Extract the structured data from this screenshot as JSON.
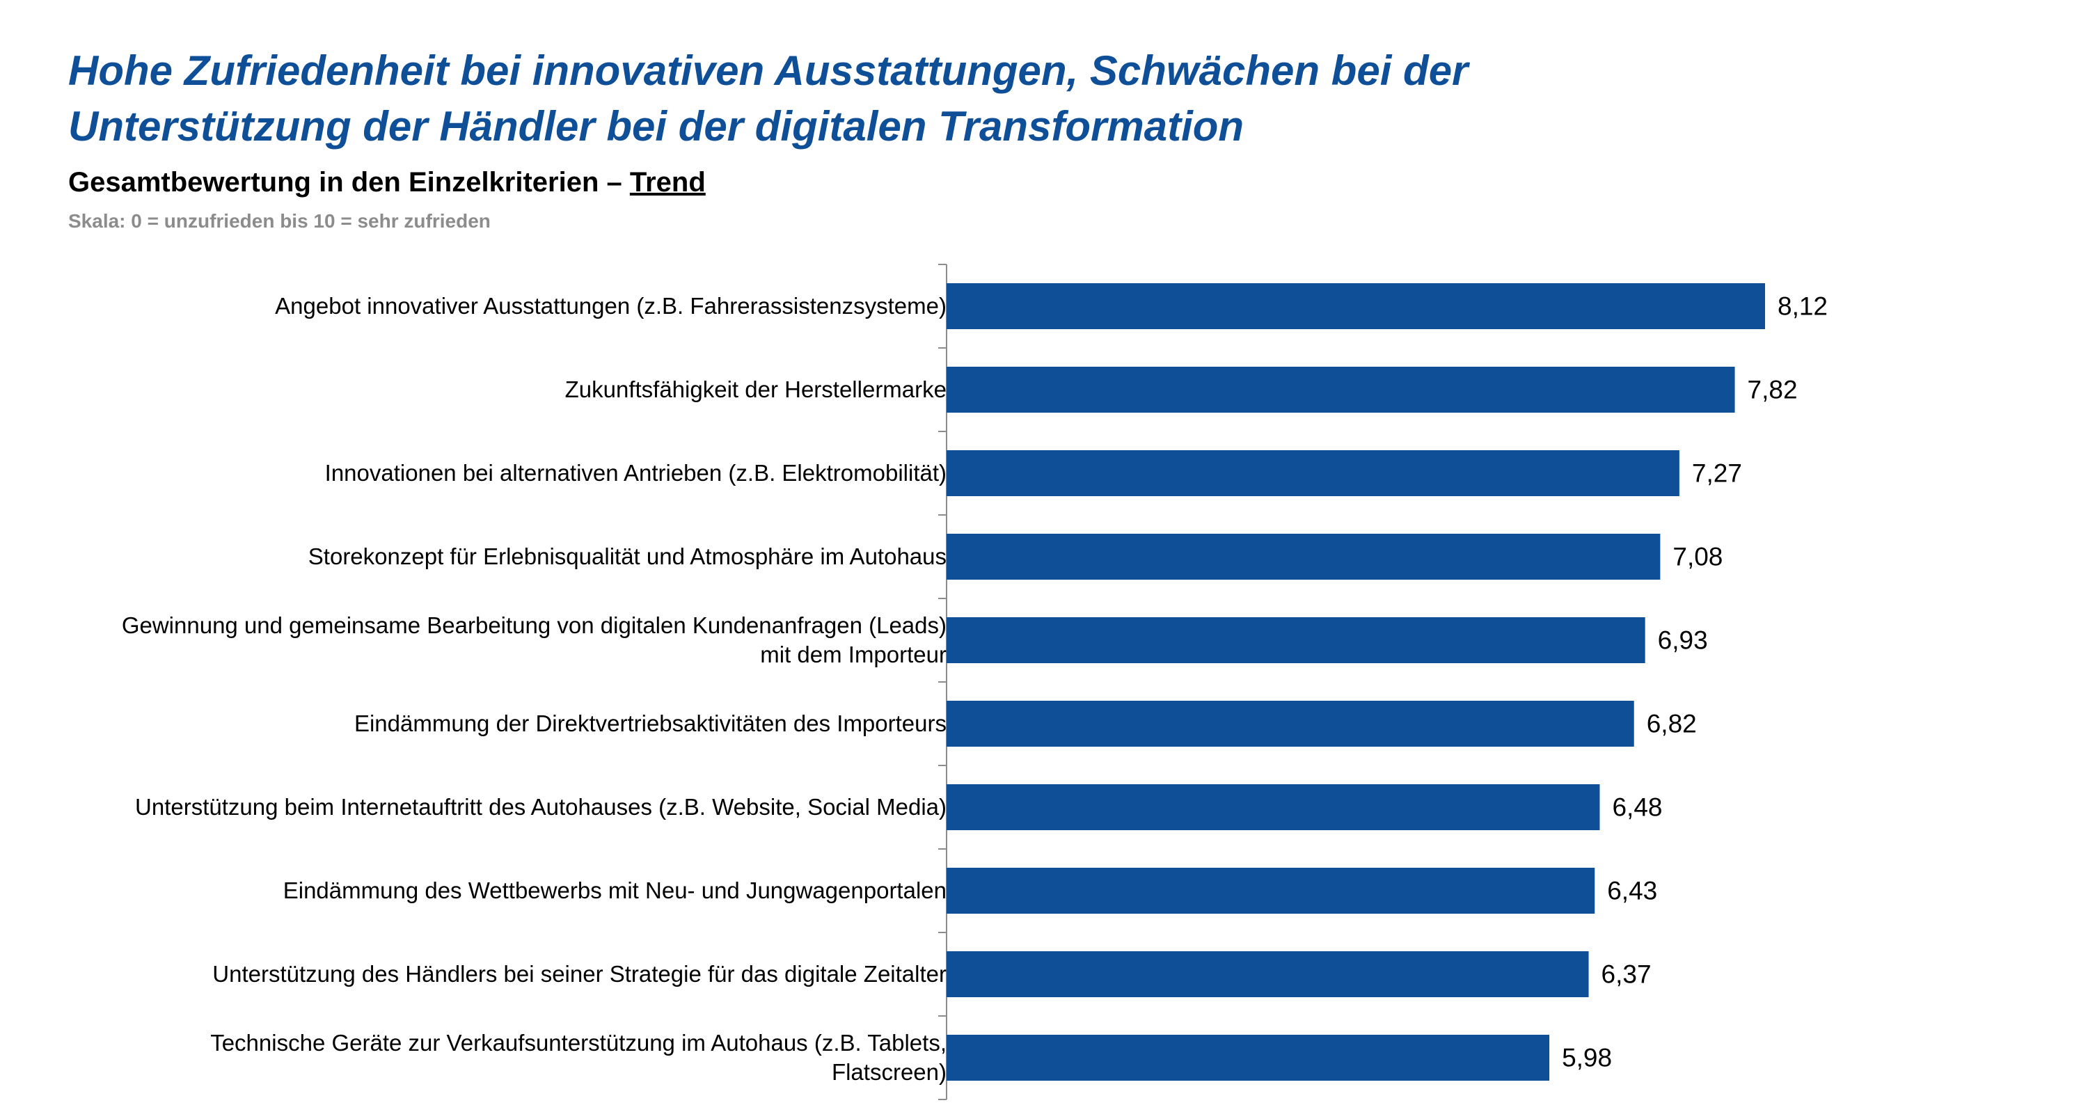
{
  "title": {
    "line1": "Hohe Zufriedenheit bei innovativen Ausstattungen, Schwächen bei der",
    "line2": "Unterstützung der Händler bei der digitalen Transformation"
  },
  "subtitle": {
    "text": "Gesamtbewertung in den Einzelkriterien – ",
    "emphasis": "Trend"
  },
  "scale_note": "Skala: 0 = unzufrieden bis 10 = sehr zufrieden",
  "colors": {
    "title": "#0e4f97",
    "bar": "#0e4f97",
    "axis": "#8c8c8c"
  },
  "chart_data": {
    "type": "bar",
    "orientation": "horizontal",
    "categories": [
      "Angebot innovativer Ausstattungen (z.B. Fahrerassistenzsysteme)",
      "Zukunftsfähigkeit der Herstellermarke",
      "Innovationen bei alternativen Antrieben (z.B. Elektromobilität)",
      "Storekonzept für Erlebnisqualität und Atmosphäre im Autohaus",
      "Gewinnung und gemeinsame Bearbeitung von digitalen Kundenanfragen (Leads)\nmit dem Importeur",
      "Eindämmung der Direktvertriebsaktivitäten des Importeurs",
      "Unterstützung beim Internetauftritt des Autohauses (z.B. Website, Social Media)",
      "Eindämmung des Wettbewerbs mit Neu- und Jungwagenportalen",
      "Unterstützung des Händlers bei seiner Strategie für das digitale Zeitalter",
      "Technische Geräte zur Verkaufsunterstützung im Autohaus (z.B. Tablets,\nFlatscreen)"
    ],
    "values": [
      8.12,
      7.82,
      7.27,
      7.08,
      6.93,
      6.82,
      6.48,
      6.43,
      6.37,
      5.98
    ],
    "value_labels": [
      "8,12",
      "7,82",
      "7,27",
      "7,08",
      "6,93",
      "6,82",
      "6,48",
      "6,43",
      "6,37",
      "5,98"
    ],
    "xlim": [
      0,
      10
    ],
    "grid": false,
    "legend": "none"
  }
}
